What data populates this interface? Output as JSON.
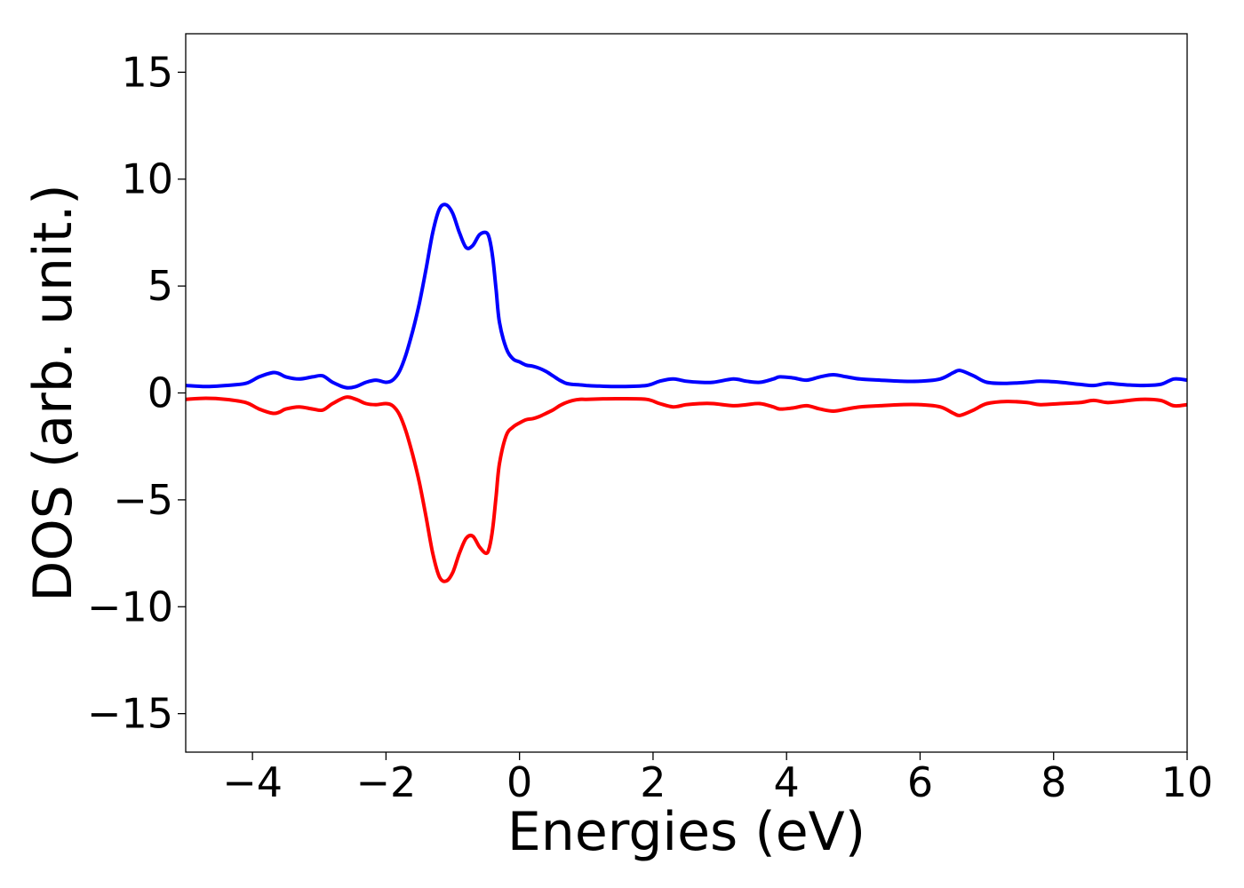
{
  "chart_data": {
    "type": "line",
    "title": "",
    "xlabel": "Energies (eV)",
    "ylabel": "DOS (arb. unit.)",
    "xlim": [
      -5,
      10
    ],
    "ylim": [
      -16.8,
      16.8
    ],
    "grid": false,
    "legend": "none",
    "xticks": [
      -4,
      -2,
      0,
      2,
      4,
      6,
      8,
      10
    ],
    "xtick_labels": [
      "−4",
      "−2",
      "0",
      "2",
      "4",
      "6",
      "8",
      "10"
    ],
    "yticks": [
      15,
      10,
      5,
      0,
      -5,
      -10,
      -15
    ],
    "ytick_labels": [
      "15",
      "10",
      "5",
      "0",
      "−5",
      "−10",
      "−15"
    ],
    "series": [
      {
        "color": "#0000ff",
        "x": [
          -5.0,
          -4.7,
          -4.4,
          -4.1,
          -3.9,
          -3.7,
          -3.6,
          -3.5,
          -3.3,
          -3.1,
          -2.95,
          -2.8,
          -2.6,
          -2.45,
          -2.3,
          -2.15,
          -2.0,
          -1.9,
          -1.8,
          -1.7,
          -1.6,
          -1.5,
          -1.4,
          -1.3,
          -1.2,
          -1.1,
          -1.0,
          -0.9,
          -0.8,
          -0.7,
          -0.6,
          -0.5,
          -0.45,
          -0.4,
          -0.35,
          -0.3,
          -0.2,
          -0.1,
          0.0,
          0.1,
          0.2,
          0.3,
          0.4,
          0.5,
          0.6,
          0.7,
          0.8,
          0.9,
          1.0,
          1.2,
          1.5,
          1.9,
          2.1,
          2.3,
          2.5,
          2.7,
          2.9,
          3.2,
          3.4,
          3.6,
          3.8,
          3.9,
          4.1,
          4.3,
          4.5,
          4.7,
          4.9,
          5.1,
          5.4,
          5.7,
          6.0,
          6.3,
          6.5,
          6.6,
          6.8,
          7.0,
          7.3,
          7.6,
          7.8,
          8.1,
          8.4,
          8.6,
          8.8,
          9.0,
          9.3,
          9.6,
          9.8,
          10.0
        ],
        "y": [
          0.35,
          0.3,
          0.35,
          0.45,
          0.75,
          0.95,
          0.9,
          0.75,
          0.65,
          0.75,
          0.8,
          0.5,
          0.25,
          0.3,
          0.5,
          0.6,
          0.5,
          0.6,
          1.0,
          1.8,
          2.9,
          4.2,
          5.8,
          7.5,
          8.6,
          8.8,
          8.4,
          7.5,
          6.8,
          6.9,
          7.4,
          7.5,
          7.2,
          6.3,
          4.8,
          3.3,
          2.1,
          1.6,
          1.45,
          1.3,
          1.25,
          1.15,
          1.0,
          0.8,
          0.6,
          0.45,
          0.4,
          0.38,
          0.35,
          0.32,
          0.3,
          0.35,
          0.55,
          0.65,
          0.55,
          0.5,
          0.5,
          0.65,
          0.55,
          0.5,
          0.65,
          0.75,
          0.7,
          0.6,
          0.75,
          0.85,
          0.75,
          0.65,
          0.6,
          0.55,
          0.55,
          0.65,
          0.95,
          1.05,
          0.8,
          0.5,
          0.45,
          0.5,
          0.55,
          0.5,
          0.4,
          0.35,
          0.45,
          0.4,
          0.35,
          0.4,
          0.65,
          0.6
        ]
      },
      {
        "color": "#ff0000",
        "x": [
          -5.0,
          -4.7,
          -4.4,
          -4.1,
          -3.9,
          -3.7,
          -3.6,
          -3.5,
          -3.3,
          -3.1,
          -2.95,
          -2.8,
          -2.6,
          -2.45,
          -2.3,
          -2.15,
          -2.0,
          -1.9,
          -1.8,
          -1.7,
          -1.6,
          -1.5,
          -1.4,
          -1.3,
          -1.2,
          -1.1,
          -1.0,
          -0.9,
          -0.8,
          -0.7,
          -0.6,
          -0.5,
          -0.45,
          -0.4,
          -0.35,
          -0.3,
          -0.2,
          -0.1,
          0.0,
          0.1,
          0.2,
          0.3,
          0.4,
          0.5,
          0.6,
          0.7,
          0.8,
          0.9,
          1.0,
          1.2,
          1.5,
          1.9,
          2.1,
          2.3,
          2.5,
          2.7,
          2.9,
          3.2,
          3.4,
          3.6,
          3.8,
          3.9,
          4.1,
          4.3,
          4.5,
          4.7,
          4.9,
          5.1,
          5.4,
          5.7,
          6.0,
          6.3,
          6.5,
          6.6,
          6.8,
          7.0,
          7.3,
          7.6,
          7.8,
          8.1,
          8.4,
          8.6,
          8.8,
          9.0,
          9.3,
          9.6,
          9.8,
          10.0
        ],
        "y": [
          -0.3,
          -0.25,
          -0.3,
          -0.45,
          -0.75,
          -0.95,
          -0.9,
          -0.75,
          -0.65,
          -0.75,
          -0.8,
          -0.5,
          -0.2,
          -0.3,
          -0.5,
          -0.55,
          -0.5,
          -0.6,
          -1.0,
          -1.8,
          -2.9,
          -4.2,
          -5.8,
          -7.5,
          -8.6,
          -8.8,
          -8.4,
          -7.5,
          -6.8,
          -6.7,
          -7.2,
          -7.5,
          -7.2,
          -6.3,
          -4.8,
          -3.3,
          -2.0,
          -1.6,
          -1.4,
          -1.25,
          -1.2,
          -1.1,
          -0.95,
          -0.8,
          -0.6,
          -0.45,
          -0.35,
          -0.3,
          -0.3,
          -0.28,
          -0.27,
          -0.3,
          -0.5,
          -0.65,
          -0.55,
          -0.5,
          -0.5,
          -0.6,
          -0.55,
          -0.5,
          -0.65,
          -0.75,
          -0.7,
          -0.6,
          -0.75,
          -0.85,
          -0.75,
          -0.65,
          -0.6,
          -0.55,
          -0.55,
          -0.65,
          -0.95,
          -1.05,
          -0.8,
          -0.5,
          -0.4,
          -0.45,
          -0.55,
          -0.5,
          -0.45,
          -0.35,
          -0.45,
          -0.4,
          -0.3,
          -0.35,
          -0.6,
          -0.55
        ]
      }
    ]
  }
}
